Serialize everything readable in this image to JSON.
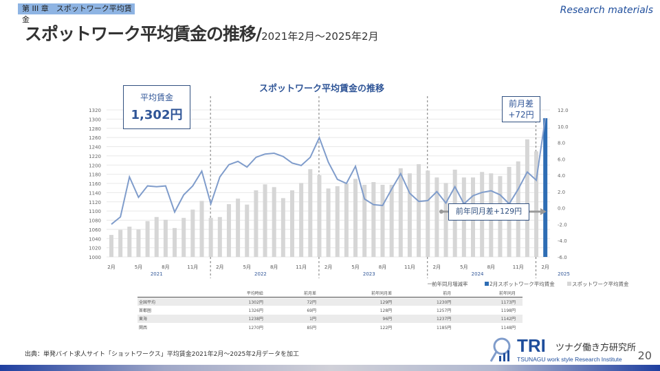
{
  "header": {
    "chapter": "第 III 章　スポットワーク平均賃金",
    "research": "Research materials",
    "title": "スポットワーク平均賃金の推移/",
    "title_sub": "2021年2月～2025年2月"
  },
  "annotations": {
    "avg_label": "平均賃金",
    "avg_value": "1,302円",
    "mom_label": "前月差",
    "mom_value": "+72円",
    "yoy": "前年同月差+129円"
  },
  "chart_data": {
    "type": "bar+line",
    "title": "スポットワーク平均賃金の推移",
    "left_axis": {
      "min": 1000,
      "max": 1320,
      "step": 20,
      "ticks": [
        "1000",
        "1020",
        "1040",
        "1060",
        "1080",
        "1100",
        "1120",
        "1140",
        "1160",
        "1180",
        "1200",
        "1220",
        "1240",
        "1260",
        "1280",
        "1300",
        "1320"
      ]
    },
    "right_axis": {
      "min": -6,
      "max": 12,
      "step": 2,
      "ticks": [
        "-6.0",
        "-4.0",
        "-2.0",
        "0.0",
        "2.0",
        "4.0",
        "6.0",
        "8.0",
        "10.0",
        "12.0"
      ]
    },
    "month_labels": [
      "2月",
      "5月",
      "8月",
      "11月",
      "2月",
      "5月",
      "8月",
      "11月",
      "2月",
      "5月",
      "8月",
      "11月",
      "2月",
      "5月",
      "8月",
      "11月",
      "2月"
    ],
    "month_label_index": [
      0,
      3,
      6,
      9,
      12,
      15,
      18,
      21,
      24,
      27,
      30,
      33,
      36,
      39,
      42,
      45,
      48
    ],
    "years": [
      {
        "label": "2021",
        "start": 0,
        "end": 10
      },
      {
        "label": "2022",
        "start": 11,
        "end": 22
      },
      {
        "label": "2023",
        "start": 23,
        "end": 34
      },
      {
        "label": "2024",
        "start": 35,
        "end": 46
      },
      {
        "label": "2025",
        "start": 47,
        "end": 50
      }
    ],
    "wage": [
      1048,
      1059,
      1066,
      1060,
      1078,
      1087,
      1081,
      1063,
      1085,
      1103,
      1122,
      1085,
      1087,
      1115,
      1127,
      1114,
      1145,
      1158,
      1152,
      1128,
      1145,
      1161,
      1191,
      1178,
      1149,
      1154,
      1160,
      1170,
      1157,
      1163,
      1157,
      1157,
      1193,
      1182,
      1202,
      1188,
      1173,
      1161,
      1190,
      1173,
      1173,
      1185,
      1182,
      1176,
      1196,
      1208,
      1256,
      1230,
      1302
    ],
    "yoy_rate": [
      -2.0,
      -1.1,
      3.8,
      1.3,
      2.7,
      2.6,
      2.7,
      -0.5,
      1.6,
      2.7,
      4.5,
      0.5,
      3.8,
      5.3,
      5.7,
      5.0,
      6.2,
      6.6,
      6.7,
      6.3,
      5.5,
      5.2,
      6.2,
      8.6,
      5.6,
      3.5,
      3.0,
      5.1,
      1.1,
      0.4,
      0.3,
      2.3,
      4.2,
      1.8,
      0.8,
      0.9,
      2.0,
      0.6,
      2.6,
      0.5,
      1.5,
      1.9,
      2.1,
      1.6,
      0.5,
      2.3,
      4.4,
      3.4,
      11.0
    ],
    "highlight_index": 48,
    "legend": [
      "前年同月増減率",
      "2月スポットワーク平均賃金",
      "スポットワーク平均賃金"
    ],
    "colors": {
      "bar": "#d6d6d6",
      "highlight": "#2e6db4",
      "line": "#7f9ccb"
    }
  },
  "table": {
    "headers": [
      "",
      "平均時給",
      "前月差",
      "前年同月差",
      "前月",
      "前年同月"
    ],
    "rows": [
      [
        "全国平均",
        "1302円",
        "72円",
        "129円",
        "1230円",
        "1173円"
      ],
      [
        "首都圏",
        "1326円",
        "69円",
        "128円",
        "1257円",
        "1198円"
      ],
      [
        "東海",
        "1238円",
        "1円",
        "96円",
        "1237円",
        "1142円"
      ],
      [
        "関西",
        "1270円",
        "85円",
        "122円",
        "1185円",
        "1148円"
      ]
    ]
  },
  "footer": {
    "source": "出典：単発バイト求人サイト「ショットワークス」平均賃金2021年2月～2025年2月データを加工",
    "page": "20",
    "logo_main": "TRI",
    "logo_jp": "ツナグ働き方研究所",
    "logo_en": "TSUNAGU work style Research Institute"
  }
}
